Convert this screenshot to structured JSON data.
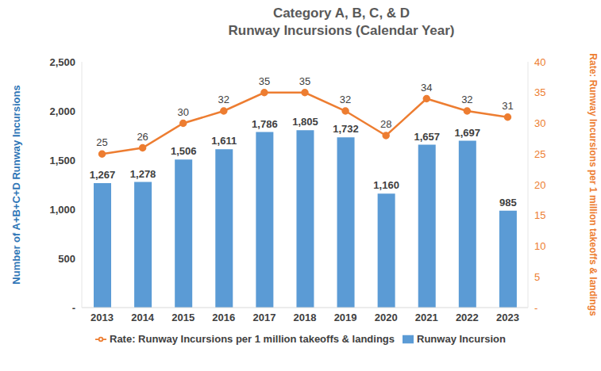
{
  "chart_data": {
    "type": "bar",
    "title": "Category A, B, C, & D",
    "subtitle": "Runway Incursions (Calendar Year)",
    "y_label": "Number of A+B+C+D Runway Incursions",
    "y2_label": "Rate: Runway Incursions per 1 million takeoffs & landings",
    "categories": [
      "2013",
      "2014",
      "2015",
      "2016",
      "2017",
      "2018",
      "2019",
      "2020",
      "2021",
      "2022",
      "2023"
    ],
    "series": [
      {
        "name": "Runway Incursion",
        "type": "bar",
        "color": "#5b9bd5",
        "values": [
          1267,
          1278,
          1506,
          1611,
          1786,
          1805,
          1732,
          1160,
          1657,
          1697,
          985
        ],
        "value_labels": [
          "1,267",
          "1,278",
          "1,506",
          "1,611",
          "1,786",
          "1,805",
          "1,732",
          "1,160",
          "1,657",
          "1,697",
          "985"
        ]
      },
      {
        "name": "Rate: Runway Incursions per 1 million takeoffs & landings",
        "type": "line",
        "axis": "y2",
        "color": "#ed7d31",
        "marker": "circle",
        "values": [
          25,
          26,
          30,
          32,
          35,
          35,
          32,
          28,
          34,
          32,
          31
        ]
      }
    ],
    "ylim": [
      0,
      2500
    ],
    "yticks": [
      {
        "value": 0,
        "label": "-"
      },
      500,
      {
        "value": 1000,
        "label": "1,000"
      },
      {
        "value": 1500,
        "label": "1,500"
      },
      {
        "value": 2000,
        "label": "2,000"
      },
      {
        "value": 2500,
        "label": "2,500"
      }
    ],
    "y2lim": [
      0,
      40
    ],
    "y2ticks": [
      {
        "value": 0,
        "label": "-"
      },
      5,
      10,
      15,
      20,
      25,
      30,
      35,
      40
    ],
    "data_labels": true,
    "legend": "bottom",
    "grid": false
  }
}
